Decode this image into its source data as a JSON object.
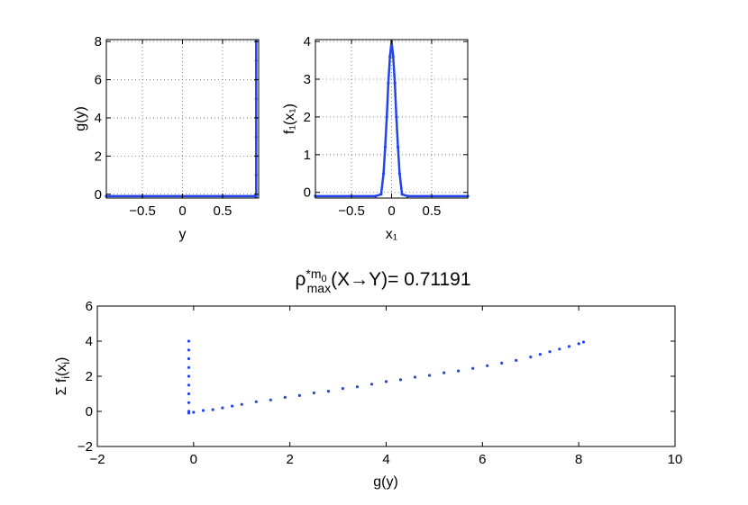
{
  "chart_data": [
    {
      "type": "scatter",
      "xlabel": "y",
      "ylabel": "g(y)",
      "xlim": [
        -0.95,
        0.95
      ],
      "ylim": [
        -0.2,
        8.1
      ],
      "xticks": [
        -0.5,
        0,
        0.5
      ],
      "xtick_labels": [
        "−0.5",
        "0",
        "0.5"
      ],
      "yticks": [
        0,
        2,
        4,
        6,
        8
      ],
      "ytick_labels": [
        "0",
        "2",
        "4",
        "6",
        "8"
      ],
      "grid": true,
      "series": [
        {
          "color": "#2244ee",
          "points": [
            [
              -0.95,
              -0.1
            ],
            [
              -0.5,
              -0.1
            ],
            [
              0,
              -0.1
            ],
            [
              0.5,
              -0.1
            ],
            [
              0.91,
              -0.1
            ],
            [
              0.92,
              -0.1
            ],
            [
              0.92,
              1
            ],
            [
              0.92,
              2
            ],
            [
              0.92,
              3
            ],
            [
              0.92,
              4
            ],
            [
              0.92,
              5
            ],
            [
              0.92,
              6
            ],
            [
              0.92,
              7
            ],
            [
              0.92,
              8
            ]
          ]
        }
      ]
    },
    {
      "type": "line",
      "xlabel": "x₁",
      "ylabel": "f₁(x₁)",
      "xlim": [
        -0.95,
        0.95
      ],
      "ylim": [
        -0.15,
        4.05
      ],
      "xticks": [
        -0.5,
        0,
        0.5
      ],
      "xtick_labels": [
        "−0.5",
        "0",
        "0.5"
      ],
      "yticks": [
        0,
        1,
        2,
        3,
        4
      ],
      "ytick_labels": [
        "0",
        "1",
        "2",
        "3",
        "4"
      ],
      "grid": true,
      "series": [
        {
          "color": "#2244ee",
          "points": [
            [
              -0.95,
              -0.1
            ],
            [
              -0.2,
              -0.1
            ],
            [
              -0.13,
              -0.05
            ],
            [
              -0.1,
              0.5
            ],
            [
              -0.08,
              1.2
            ],
            [
              -0.06,
              2
            ],
            [
              -0.04,
              2.9
            ],
            [
              -0.02,
              3.6
            ],
            [
              0,
              4
            ],
            [
              0.02,
              3.6
            ],
            [
              0.04,
              2.9
            ],
            [
              0.06,
              2
            ],
            [
              0.08,
              1.2
            ],
            [
              0.1,
              0.5
            ],
            [
              0.13,
              -0.05
            ],
            [
              0.2,
              -0.1
            ],
            [
              0.95,
              -0.1
            ]
          ]
        }
      ]
    },
    {
      "type": "scatter",
      "title_parts": [
        "ρ",
        "*m",
        "0",
        "max",
        "(X→Y)= 0.71191"
      ],
      "xlabel": "g(y)",
      "ylabel_parts": [
        "Σ f",
        "i",
        "(x",
        "i",
        ")"
      ],
      "xlim": [
        -2,
        10
      ],
      "ylim": [
        -2,
        6
      ],
      "xticks": [
        -2,
        0,
        2,
        4,
        6,
        8,
        10
      ],
      "xtick_labels": [
        "−2",
        "0",
        "2",
        "4",
        "6",
        "8",
        "10"
      ],
      "yticks": [
        -2,
        0,
        2,
        4,
        6
      ],
      "ytick_labels": [
        "−2",
        "0",
        "2",
        "4",
        "6"
      ],
      "grid": false,
      "series": [
        {
          "color": "#2244ee",
          "points": [
            [
              -0.1,
              4
            ],
            [
              -0.1,
              3.5
            ],
            [
              -0.1,
              3
            ],
            [
              -0.1,
              2.5
            ],
            [
              -0.1,
              2
            ],
            [
              -0.1,
              1.5
            ],
            [
              -0.1,
              1
            ],
            [
              -0.1,
              0.5
            ],
            [
              -0.1,
              0
            ],
            [
              -0.1,
              -0.1
            ],
            [
              0,
              -0.05
            ],
            [
              0.2,
              0.05
            ],
            [
              0.4,
              0.1
            ],
            [
              0.6,
              0.2
            ],
            [
              0.8,
              0.3
            ],
            [
              1,
              0.4
            ],
            [
              1.3,
              0.55
            ],
            [
              1.6,
              0.65
            ],
            [
              1.9,
              0.8
            ],
            [
              2.2,
              0.9
            ],
            [
              2.5,
              1.05
            ],
            [
              2.8,
              1.15
            ],
            [
              3.1,
              1.3
            ],
            [
              3.4,
              1.4
            ],
            [
              3.7,
              1.55
            ],
            [
              4,
              1.7
            ],
            [
              4.3,
              1.8
            ],
            [
              4.6,
              1.95
            ],
            [
              4.9,
              2.05
            ],
            [
              5.2,
              2.2
            ],
            [
              5.5,
              2.3
            ],
            [
              5.8,
              2.45
            ],
            [
              6.1,
              2.6
            ],
            [
              6.4,
              2.75
            ],
            [
              6.7,
              2.9
            ],
            [
              7,
              3.1
            ],
            [
              7.2,
              3.25
            ],
            [
              7.4,
              3.4
            ],
            [
              7.6,
              3.55
            ],
            [
              7.8,
              3.7
            ],
            [
              8,
              3.85
            ],
            [
              8.1,
              3.95
            ]
          ]
        }
      ]
    }
  ]
}
